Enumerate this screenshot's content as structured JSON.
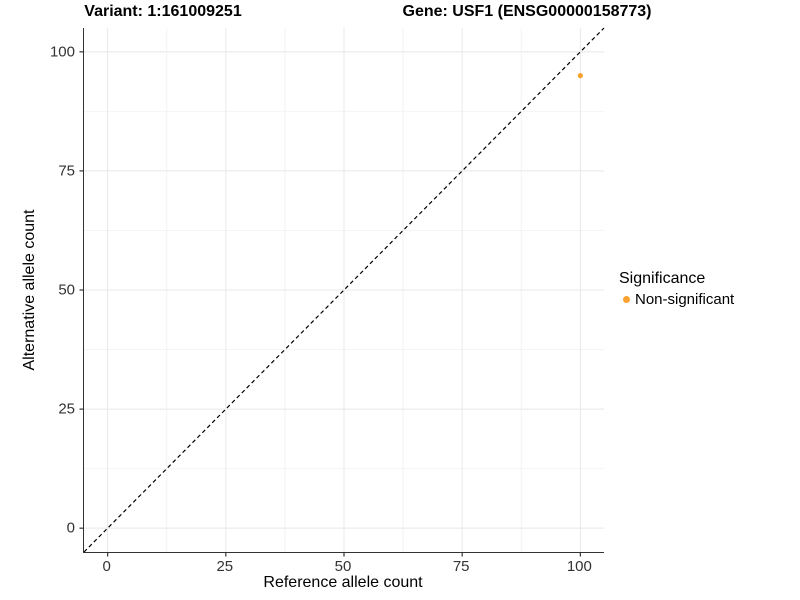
{
  "chart_data": {
    "type": "scatter",
    "title_left": "Variant: 1:161009251",
    "title_right": "Gene: USF1 (ENSG00000158773)",
    "xlabel": "Reference allele count",
    "ylabel": "Alternative allele count",
    "xlim": [
      -5,
      105
    ],
    "ylim": [
      -5,
      105
    ],
    "xticks": [
      0,
      25,
      50,
      75,
      100
    ],
    "yticks": [
      0,
      25,
      50,
      75,
      100
    ],
    "minor_xticks": [
      12.5,
      37.5,
      62.5,
      87.5
    ],
    "minor_yticks": [
      12.5,
      37.5,
      62.5,
      87.5
    ],
    "grid": "major and minor, light gray on white",
    "reference_line": {
      "type": "identity-diagonal",
      "from": [
        -5,
        -5
      ],
      "to": [
        105,
        105
      ],
      "style": "dashed",
      "color": "#000000"
    },
    "series": [
      {
        "name": "Non-significant",
        "color": "#F9A232",
        "points": [
          {
            "x": 100,
            "y": 95
          }
        ]
      }
    ],
    "legend": {
      "title": "Significance",
      "position": "right",
      "items": [
        {
          "label": "Non-significant",
          "color": "#F9A232"
        }
      ]
    }
  },
  "colors": {
    "accent_orange": "#F9A232",
    "grid_major": "#E8E8E8",
    "grid_minor": "#F4F4F4",
    "axis_line": "#333333",
    "tick_text": "#333333",
    "title_text": "#000000",
    "background": "#FFFFFF"
  }
}
